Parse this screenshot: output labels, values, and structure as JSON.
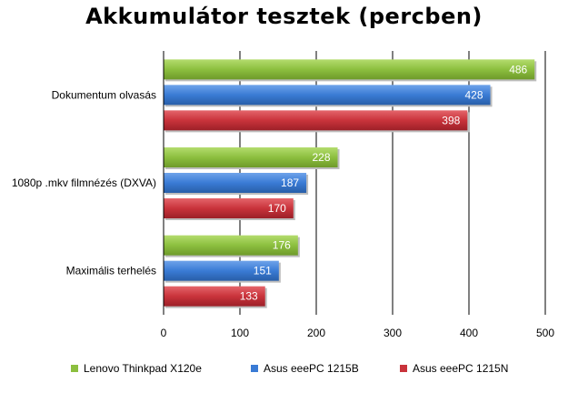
{
  "chart_data": {
    "type": "bar",
    "orientation": "horizontal",
    "title": "Akkumulátor tesztek (percben)",
    "categories": [
      "Dokumentum olvasás",
      "1080p .mkv filmnézés (DXVA)",
      "Maximális terhelés"
    ],
    "series": [
      {
        "name": "Lenovo Thinkpad X120e",
        "color": "#8cbf3f",
        "values": [
          486,
          228,
          176
        ]
      },
      {
        "name": "Asus eeePC 1215B",
        "color": "#3a7bd5",
        "values": [
          428,
          187,
          151
        ]
      },
      {
        "name": "Asus eeePC 1215N",
        "color": "#c9333b",
        "values": [
          398,
          170,
          133
        ]
      }
    ],
    "xlim": [
      0,
      500
    ],
    "xticks": [
      0,
      100,
      200,
      300,
      400,
      500
    ],
    "data_labels": true,
    "grid": true,
    "legend": "bottom"
  }
}
